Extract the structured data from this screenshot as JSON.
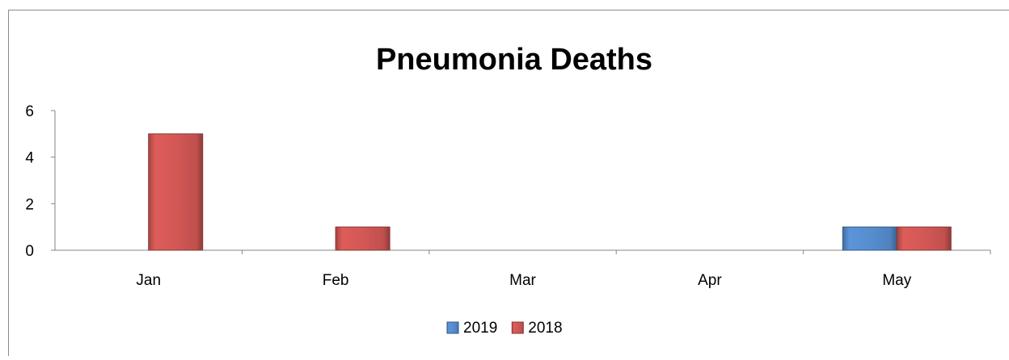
{
  "chart_data": {
    "type": "bar",
    "title": "Pneumonia Deaths",
    "categories": [
      "Jan",
      "Feb",
      "Mar",
      "Apr",
      "May"
    ],
    "series": [
      {
        "name": "2019",
        "color": "#4f81bd",
        "values": [
          0,
          0,
          0,
          0,
          1
        ]
      },
      {
        "name": "2018",
        "color": "#c0504d",
        "values": [
          5,
          1,
          0,
          0,
          1
        ]
      }
    ],
    "ylim": [
      0,
      6
    ],
    "yticks": [
      0,
      2,
      4,
      6
    ],
    "grid": false,
    "legend": "bottom"
  }
}
